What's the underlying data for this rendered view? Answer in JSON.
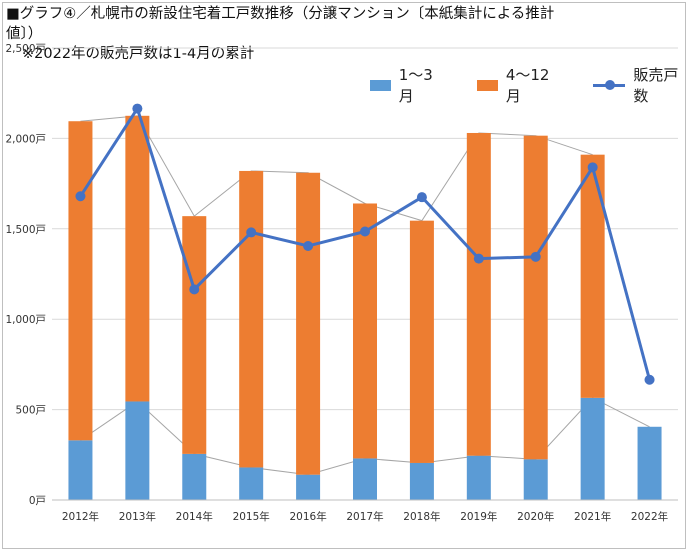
{
  "title": "■グラフ④／札幌市の新設住宅着工戸数推移（分譲マンション〔本紙集計による推計値〕）",
  "note": "※2022年の販売戸数は1-4月の累計",
  "colors": {
    "q1": "#5b9bd5",
    "q2": "#ed7d31",
    "line": "#4472c4",
    "grid": "#d9d9d9",
    "connector": "#a6a6a6"
  },
  "chart_data": {
    "type": "bar",
    "stacked": true,
    "categories": [
      "2012年",
      "2013年",
      "2014年",
      "2015年",
      "2016年",
      "2017年",
      "2018年",
      "2019年",
      "2020年",
      "2021年",
      "2022年"
    ],
    "series": [
      {
        "name": "1～3月",
        "kind": "bar",
        "values": [
          330,
          545,
          255,
          180,
          140,
          230,
          205,
          245,
          225,
          565,
          405
        ]
      },
      {
        "name": "4～12月",
        "kind": "bar",
        "values": [
          1765,
          1580,
          1315,
          1640,
          1670,
          1410,
          1340,
          1785,
          1790,
          1345,
          0
        ]
      },
      {
        "name": "販売戸数",
        "kind": "line",
        "values": [
          1680,
          2165,
          1165,
          1480,
          1405,
          1485,
          1675,
          1335,
          1345,
          1840,
          665
        ]
      }
    ],
    "ylim": [
      0,
      2500
    ],
    "yticks": [
      "0戸",
      "500戸",
      "1,000戸",
      "1,500戸",
      "2,000戸",
      "2,500戸"
    ],
    "ytick_values": [
      0,
      500,
      1000,
      1500,
      2000,
      2500
    ],
    "grid": true,
    "legend": "top-right"
  }
}
